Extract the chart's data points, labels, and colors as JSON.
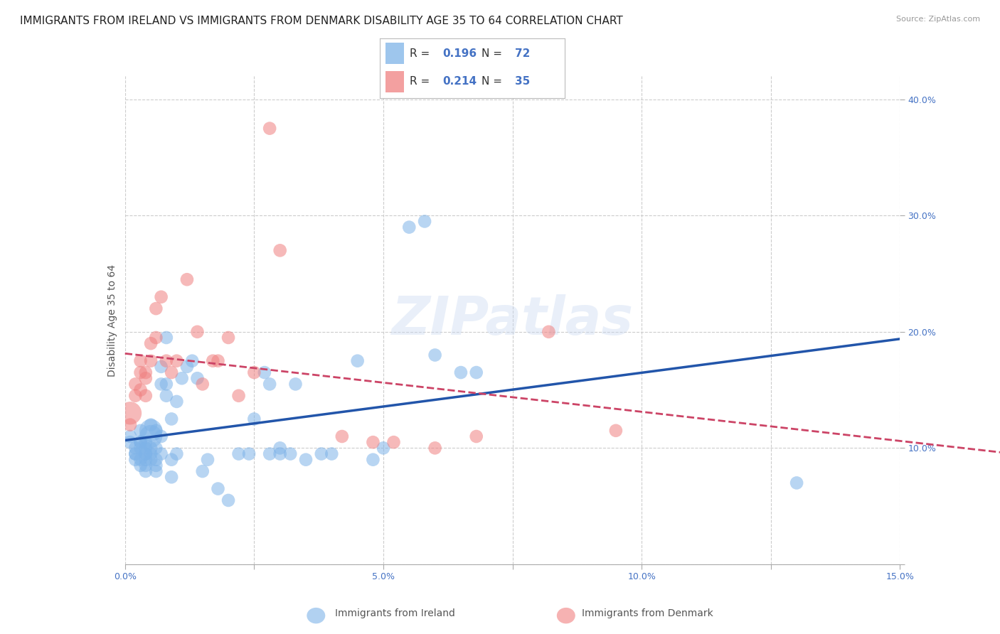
{
  "title": "IMMIGRANTS FROM IRELAND VS IMMIGRANTS FROM DENMARK DISABILITY AGE 35 TO 64 CORRELATION CHART",
  "source": "Source: ZipAtlas.com",
  "ylabel": "Disability Age 35 to 64",
  "xlim": [
    0.0,
    0.15
  ],
  "ylim": [
    0.0,
    0.42
  ],
  "xticks": [
    0.0,
    0.025,
    0.05,
    0.075,
    0.1,
    0.125,
    0.15
  ],
  "xticklabels": [
    "0.0%",
    "",
    "5.0%",
    "",
    "10.0%",
    "",
    "15.0%"
  ],
  "yticks": [
    0.0,
    0.1,
    0.2,
    0.3,
    0.4
  ],
  "yticklabels": [
    "",
    "10.0%",
    "20.0%",
    "30.0%",
    "40.0%"
  ],
  "ireland_color": "#7EB3E8",
  "denmark_color": "#F08080",
  "ireland_line_color": "#2255AA",
  "denmark_line_color": "#CC4466",
  "ireland_R": 0.196,
  "ireland_N": 72,
  "denmark_R": 0.214,
  "denmark_N": 35,
  "legend_label_ireland": "Immigrants from Ireland",
  "legend_label_denmark": "Immigrants from Denmark",
  "watermark": "ZIPatlas",
  "ireland_x": [
    0.001,
    0.001,
    0.002,
    0.002,
    0.002,
    0.002,
    0.003,
    0.003,
    0.003,
    0.003,
    0.003,
    0.003,
    0.004,
    0.004,
    0.004,
    0.004,
    0.004,
    0.004,
    0.004,
    0.005,
    0.005,
    0.005,
    0.005,
    0.005,
    0.005,
    0.006,
    0.006,
    0.006,
    0.006,
    0.006,
    0.007,
    0.007,
    0.007,
    0.007,
    0.008,
    0.008,
    0.008,
    0.009,
    0.009,
    0.009,
    0.01,
    0.01,
    0.011,
    0.012,
    0.013,
    0.014,
    0.015,
    0.016,
    0.018,
    0.02,
    0.022,
    0.024,
    0.025,
    0.027,
    0.028,
    0.028,
    0.03,
    0.03,
    0.032,
    0.033,
    0.035,
    0.038,
    0.04,
    0.045,
    0.048,
    0.05,
    0.055,
    0.058,
    0.06,
    0.065,
    0.068,
    0.13
  ],
  "ireland_y": [
    0.11,
    0.105,
    0.095,
    0.1,
    0.095,
    0.09,
    0.085,
    0.09,
    0.105,
    0.1,
    0.115,
    0.105,
    0.08,
    0.09,
    0.095,
    0.095,
    0.105,
    0.1,
    0.085,
    0.095,
    0.09,
    0.1,
    0.11,
    0.115,
    0.12,
    0.1,
    0.09,
    0.08,
    0.115,
    0.085,
    0.095,
    0.11,
    0.155,
    0.17,
    0.145,
    0.155,
    0.195,
    0.125,
    0.09,
    0.075,
    0.095,
    0.14,
    0.16,
    0.17,
    0.175,
    0.16,
    0.08,
    0.09,
    0.065,
    0.055,
    0.095,
    0.095,
    0.125,
    0.165,
    0.155,
    0.095,
    0.095,
    0.1,
    0.095,
    0.155,
    0.09,
    0.095,
    0.095,
    0.175,
    0.09,
    0.1,
    0.29,
    0.295,
    0.18,
    0.165,
    0.165,
    0.07
  ],
  "ireland_size_scale": [
    1,
    1,
    1,
    1,
    1,
    1,
    1,
    1,
    1,
    1,
    1,
    1,
    1,
    1,
    1,
    1,
    1,
    1,
    1,
    1,
    1,
    1,
    3,
    3,
    1,
    1,
    1,
    1,
    1,
    1,
    1,
    1,
    1,
    1,
    1,
    1,
    1,
    1,
    1,
    1,
    1,
    1,
    1,
    1,
    1,
    1,
    1,
    1,
    1,
    1,
    1,
    1,
    1,
    1,
    1,
    1,
    1,
    1,
    1,
    1,
    1,
    1,
    1,
    1,
    1,
    1,
    1,
    1,
    1,
    1,
    1,
    1
  ],
  "denmark_x": [
    0.001,
    0.001,
    0.002,
    0.002,
    0.003,
    0.003,
    0.003,
    0.004,
    0.004,
    0.004,
    0.005,
    0.005,
    0.006,
    0.006,
    0.007,
    0.008,
    0.009,
    0.01,
    0.012,
    0.014,
    0.015,
    0.017,
    0.018,
    0.02,
    0.022,
    0.025,
    0.028,
    0.03,
    0.042,
    0.048,
    0.052,
    0.06,
    0.068,
    0.082,
    0.095
  ],
  "denmark_y": [
    0.13,
    0.12,
    0.155,
    0.145,
    0.165,
    0.15,
    0.175,
    0.16,
    0.145,
    0.165,
    0.175,
    0.19,
    0.195,
    0.22,
    0.23,
    0.175,
    0.165,
    0.175,
    0.245,
    0.2,
    0.155,
    0.175,
    0.175,
    0.195,
    0.145,
    0.165,
    0.375,
    0.27,
    0.11,
    0.105,
    0.105,
    0.1,
    0.11,
    0.2,
    0.115
  ],
  "denmark_size_scale": [
    3,
    1,
    1,
    1,
    1,
    1,
    1,
    1,
    1,
    1,
    1,
    1,
    1,
    1,
    1,
    1,
    1,
    1,
    1,
    1,
    1,
    1,
    1,
    1,
    1,
    1,
    1,
    1,
    1,
    1,
    1,
    1,
    1,
    1,
    1
  ],
  "background_color": "#ffffff",
  "grid_color": "#cccccc",
  "tick_label_color": "#4472c4",
  "title_fontsize": 11,
  "axis_label_fontsize": 10,
  "tick_fontsize": 9
}
